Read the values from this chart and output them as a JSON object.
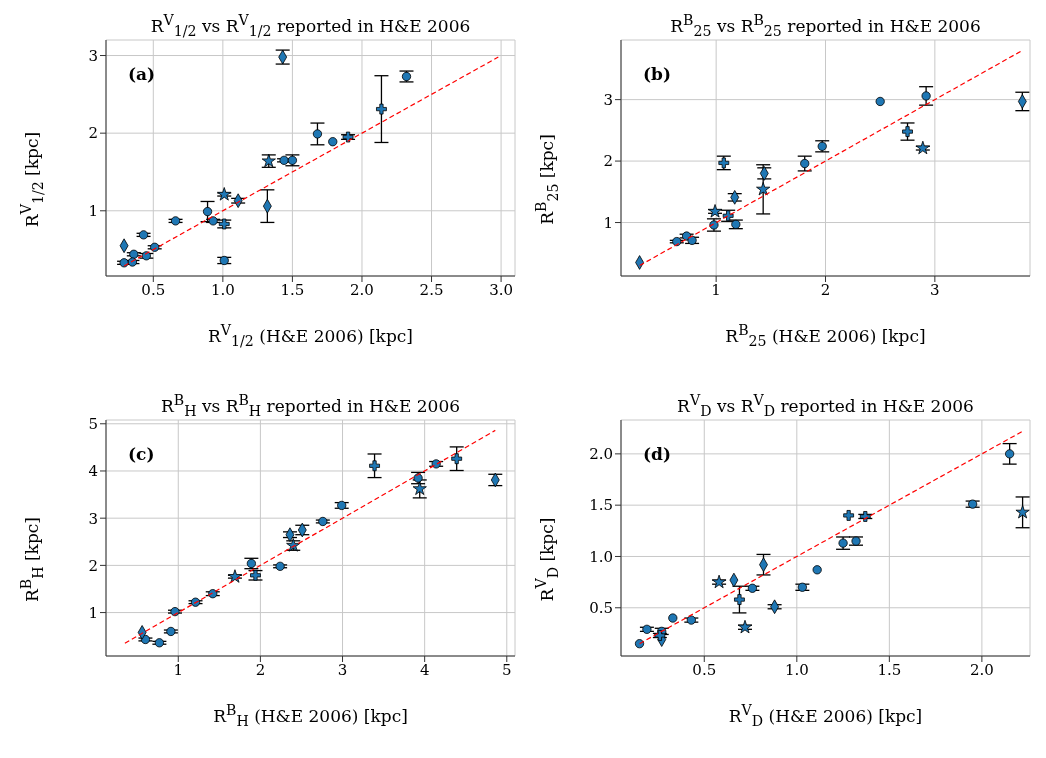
{
  "chart_data": [
    {
      "type": "scatter",
      "title": "R$^{V}$$_{1/2}$ vs R$^{V}$$_{1/2}$ reported in H&E 2006",
      "xlabel": "R$^{V}$$_{1/2}$ (H&E 2006) [kpc]",
      "ylabel": "R$^{V}$$_{1/2}$ [kpc]",
      "annotations": [
        "(a)"
      ],
      "xlim": [
        0.16,
        3.1
      ],
      "ylim": [
        0.16,
        3.2
      ],
      "xticks": [
        {
          "value": 0.5,
          "label": "0.5"
        },
        {
          "value": 1,
          "label": "1.0"
        },
        {
          "value": 1.5,
          "label": "1.5"
        },
        {
          "value": 2,
          "label": "2.0"
        },
        {
          "value": 2.5,
          "label": "2.5"
        },
        {
          "value": 3,
          "label": "3.0"
        }
      ],
      "yticks": [
        1,
        2,
        3
      ],
      "grid": true,
      "series": [
        {
          "color": "#1f77b4",
          "marker": "circle",
          "x": [
            2.32,
            1.68,
            1.79,
            1.44,
            1.5,
            0.89,
            0.93,
            0.66,
            0.43,
            0.51,
            0.36,
            0.45,
            0.29,
            0.35,
            1.01
          ],
          "values": [
            2.73,
            1.99,
            1.89,
            1.65,
            1.65,
            0.99,
            0.87,
            0.87,
            0.69,
            0.53,
            0.44,
            0.42,
            0.33,
            0.34,
            0.36
          ],
          "errors": [
            0.07,
            0.14,
            null,
            0.02,
            0.07,
            0.13,
            0.02,
            0.02,
            0.02,
            0.02,
            0.02,
            0.03,
            0.02,
            0.02,
            0.04
          ]
        },
        {
          "color": "#1f77b4",
          "marker": "diamond",
          "x": [
            1.43,
            1.32,
            1.11,
            0.29
          ],
          "values": [
            2.98,
            1.06,
            1.13,
            0.55
          ],
          "errors": [
            0.09,
            0.21,
            0.03,
            null
          ]
        },
        {
          "color": "#1f77b4",
          "marker": "cross",
          "x": [
            2.14,
            1.9,
            1.01
          ],
          "values": [
            2.31,
            1.95,
            0.83
          ],
          "errors": [
            0.43,
            0.03,
            0.05
          ]
        },
        {
          "color": "#1f77b4",
          "marker": "star",
          "x": [
            1.33,
            1.01
          ],
          "values": [
            1.64,
            1.21
          ],
          "errors": [
            0.08,
            0.02
          ]
        },
        {
          "type": "line",
          "color": "#ff0000",
          "line_style": "dashed",
          "marker": "none",
          "x": [
            0.29,
            2.98
          ],
          "values": [
            0.29,
            2.98
          ]
        }
      ]
    },
    {
      "type": "scatter",
      "title": "R$^{B}$$_{25}$ vs R$^{B}$$_{25}$ reported in H&E 2006",
      "xlabel": "R$^{B}$$_{25}$ (H&E 2006) [kpc]",
      "ylabel": "R$^{B}$$_{25}$ [kpc]",
      "annotations": [
        "(b)"
      ],
      "xlim": [
        0.13,
        3.87
      ],
      "ylim": [
        0.13,
        3.97
      ],
      "xticks": [
        1,
        2,
        3
      ],
      "yticks": [
        1,
        2,
        3
      ],
      "grid": true,
      "series": [
        {
          "color": "#1f77b4",
          "marker": "circle",
          "x": [
            2.92,
            2.5,
            1.97,
            1.81,
            1.18,
            0.98,
            0.73,
            0.64,
            0.78
          ],
          "values": [
            3.06,
            2.97,
            2.24,
            1.96,
            0.97,
            0.96,
            0.78,
            0.69,
            0.71
          ],
          "errors": [
            0.15,
            null,
            0.09,
            0.12,
            0.07,
            0.1,
            0.03,
            0.02,
            0.05
          ]
        },
        {
          "color": "#1f77b4",
          "marker": "diamond",
          "x": [
            3.8,
            1.44,
            1.17,
            0.3
          ],
          "values": [
            2.97,
            1.8,
            1.41,
            0.35
          ],
          "errors": [
            0.15,
            0.09,
            0.06,
            null
          ]
        },
        {
          "color": "#1f77b4",
          "marker": "cross",
          "x": [
            2.75,
            1.07,
            1.11
          ],
          "values": [
            2.48,
            1.97,
            1.11
          ],
          "errors": [
            0.14,
            0.11,
            0.09
          ]
        },
        {
          "color": "#1f77b4",
          "marker": "star",
          "x": [
            2.89,
            1.43,
            0.99
          ],
          "values": [
            2.21,
            1.54,
            1.18
          ],
          "errors": [
            0.03,
            0.4,
            0.03
          ]
        },
        {
          "type": "line",
          "color": "#ff0000",
          "line_style": "dashed",
          "marker": "none",
          "x": [
            0.3,
            3.8
          ],
          "values": [
            0.3,
            3.8
          ]
        }
      ]
    },
    {
      "type": "scatter",
      "title": "R$^{B}$$_{H}$ vs R$^{B}$$_{H}$ reported in H&E 2006",
      "xlabel": "R$^{B}$$_{H}$ (H&E 2006) [kpc]",
      "ylabel": "R$^{B}$$_{H}$ [kpc]",
      "annotations": [
        "(c)"
      ],
      "xlim": [
        0.12,
        5.1
      ],
      "ylim": [
        0.08,
        5.08
      ],
      "xticks": [
        1,
        2,
        3,
        4,
        5
      ],
      "yticks": [
        1,
        2,
        3,
        4,
        5
      ],
      "grid": true,
      "series": [
        {
          "color": "#1f77b4",
          "marker": "circle",
          "x": [
            4.14,
            3.92,
            2.99,
            2.76,
            2.24,
            1.89,
            1.42,
            1.21,
            0.96,
            0.91,
            0.6,
            0.77
          ],
          "values": [
            4.15,
            3.85,
            3.27,
            2.93,
            1.98,
            2.04,
            1.4,
            1.22,
            1.02,
            0.6,
            0.43,
            0.36
          ],
          "errors": [
            0.05,
            0.12,
            0.06,
            0.03,
            0.03,
            0.11,
            0.04,
            0.03,
            0.03,
            0.03,
            0.03,
            0.03
          ]
        },
        {
          "color": "#1f77b4",
          "marker": "diamond",
          "x": [
            4.86,
            2.51,
            2.36,
            0.56
          ],
          "values": [
            3.81,
            2.75,
            2.65,
            0.58
          ],
          "errors": [
            0.12,
            0.1,
            0.06,
            null
          ]
        },
        {
          "color": "#1f77b4",
          "marker": "cross",
          "x": [
            4.39,
            3.39,
            1.94
          ],
          "values": [
            4.26,
            4.11,
            1.79
          ],
          "errors": [
            0.25,
            0.25,
            0.1
          ]
        },
        {
          "color": "#1f77b4",
          "marker": "star",
          "x": [
            3.94,
            2.4,
            1.69
          ],
          "values": [
            3.62,
            2.42,
            1.76
          ],
          "errors": [
            0.19,
            0.1,
            0.03
          ]
        },
        {
          "type": "line",
          "color": "#ff0000",
          "line_style": "dashed",
          "marker": "none",
          "x": [
            0.35,
            4.86
          ],
          "values": [
            0.35,
            4.86
          ]
        }
      ]
    },
    {
      "type": "scatter",
      "title": "R$^{V}$$_{D}$ vs R$^{V}$$_{D}$ reported in H&E 2006",
      "xlabel": "R$^{V}$$_{D}$ (H&E 2006) [kpc]",
      "ylabel": "R$^{V}$$_{D}$ [kpc]",
      "annotations": [
        "(d)"
      ],
      "xlim": [
        0.05,
        2.26
      ],
      "ylim": [
        0.03,
        2.33
      ],
      "xticks": [
        {
          "value": 0.5,
          "label": "0.5"
        },
        {
          "value": 1,
          "label": "1.0"
        },
        {
          "value": 1.5,
          "label": "1.5"
        },
        {
          "value": 2,
          "label": "2.0"
        }
      ],
      "yticks": [
        {
          "value": 0.5,
          "label": "0.5"
        },
        {
          "value": 1,
          "label": "1.0"
        },
        {
          "value": 1.5,
          "label": "1.5"
        },
        {
          "value": 2,
          "label": "2.0"
        }
      ],
      "grid": true,
      "series": [
        {
          "color": "#1f77b4",
          "marker": "circle",
          "x": [
            2.15,
            1.95,
            1.25,
            1.32,
            1.11,
            1.03,
            0.76,
            0.33,
            0.43,
            0.19,
            0.27,
            0.15
          ],
          "values": [
            2.0,
            1.51,
            1.13,
            1.15,
            0.87,
            0.7,
            0.69,
            0.4,
            0.38,
            0.29,
            0.27,
            0.15
          ],
          "errors": [
            0.1,
            0.03,
            0.06,
            0.04,
            null,
            0.03,
            0.02,
            null,
            0.02,
            0.02,
            0.03,
            null
          ]
        },
        {
          "color": "#1f77b4",
          "marker": "diamond",
          "x": [
            0.82,
            0.66,
            0.88,
            0.27
          ],
          "values": [
            0.92,
            0.77,
            0.51,
            0.19
          ],
          "errors": [
            0.1,
            null,
            0.02,
            null
          ]
        },
        {
          "color": "#1f77b4",
          "marker": "cross",
          "x": [
            1.28,
            1.37,
            0.69,
            0.26
          ],
          "values": [
            1.4,
            1.39,
            0.58,
            0.23
          ],
          "errors": [
            null,
            0.02,
            0.13,
            0.02
          ]
        },
        {
          "color": "#1f77b4",
          "marker": "star",
          "x": [
            2.22,
            0.58,
            0.72
          ],
          "values": [
            1.43,
            0.75,
            0.31
          ],
          "errors": [
            0.15,
            0.02,
            0.02
          ]
        },
        {
          "type": "line",
          "color": "#ff0000",
          "line_style": "dashed",
          "marker": "none",
          "x": [
            0.15,
            2.22
          ],
          "values": [
            0.15,
            2.22
          ]
        }
      ]
    }
  ]
}
